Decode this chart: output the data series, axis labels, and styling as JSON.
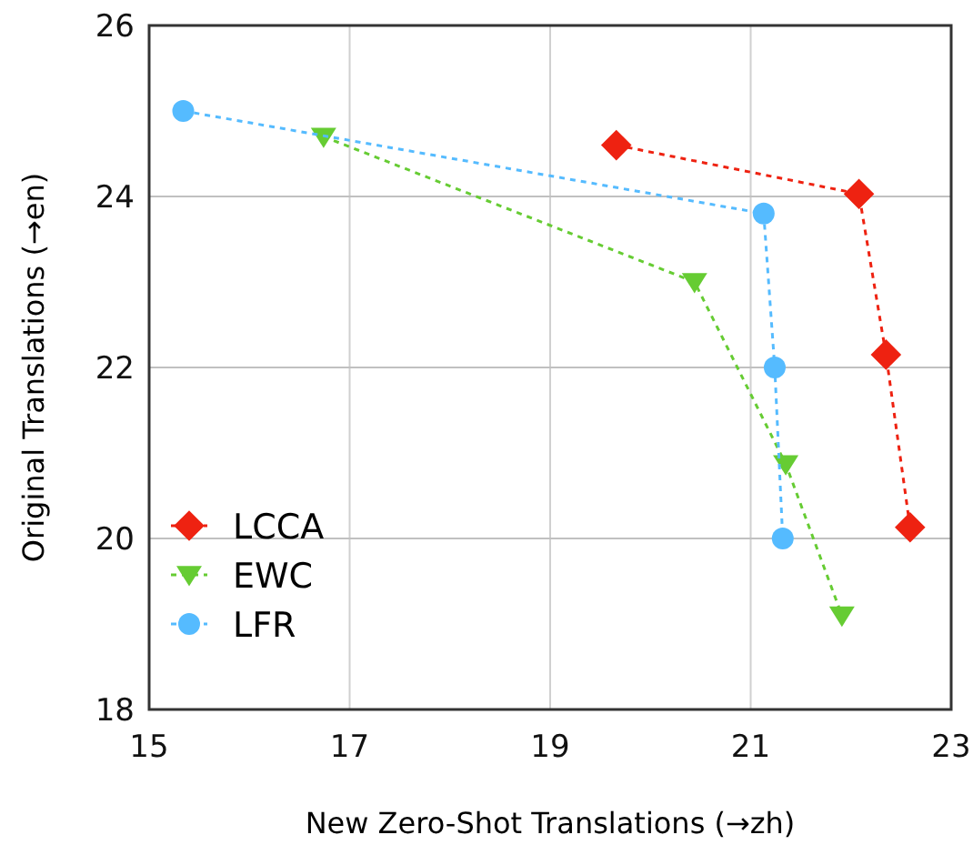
{
  "chart_data": {
    "type": "line",
    "xlabel": "New Zero-Shot Translations (→zh)",
    "ylabel": "Original Translations (→en)",
    "xlim": [
      15,
      23
    ],
    "xticks": [
      15,
      17,
      19,
      21,
      23
    ],
    "ylim": [
      18,
      26
    ],
    "yticks": [
      18,
      20,
      22,
      24,
      26
    ],
    "grid": true,
    "legend": "bottom left",
    "line_style": "dotted",
    "series": [
      {
        "name": "LCCA",
        "color": "#ee2211",
        "marker": "diamond",
        "x": [
          19.66,
          22.08,
          22.35,
          22.59
        ],
        "values": [
          24.6,
          24.03,
          22.15,
          20.13
        ]
      },
      {
        "name": "EWC",
        "color": "#66cc33",
        "marker": "triangle",
        "x": [
          16.74,
          20.44,
          21.35,
          21.91
        ],
        "values": [
          24.7,
          23.0,
          20.87,
          19.1
        ]
      },
      {
        "name": "LFR",
        "color": "#55bbff",
        "marker": "circle",
        "x": [
          15.34,
          21.13,
          21.24,
          21.32
        ],
        "values": [
          25.0,
          23.8,
          22.0,
          20.0
        ]
      }
    ]
  }
}
